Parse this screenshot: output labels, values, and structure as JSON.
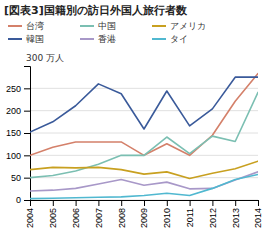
{
  "chart_data": {
    "type": "line",
    "title": "[図表3]国籍別の訪日外国人旅行者数",
    "ylabel": "300 万人",
    "x": [
      2004,
      2005,
      2006,
      2007,
      2008,
      2009,
      2010,
      2011,
      2012,
      2013,
      2014
    ],
    "series": [
      {
        "name": "台湾",
        "color": "#D4806A",
        "values": [
          100,
          118,
          130,
          130,
          130,
          100,
          126,
          100,
          145,
          221,
          283
        ]
      },
      {
        "name": "中国",
        "color": "#7BBFB2",
        "values": [
          50,
          55,
          65,
          80,
          100,
          100,
          141,
          104,
          143,
          131,
          241
        ]
      },
      {
        "name": "アメリカ",
        "color": "#C8A020",
        "values": [
          68,
          73,
          72,
          73,
          68,
          58,
          63,
          48,
          60,
          70,
          87
        ]
      },
      {
        "name": "韓国",
        "color": "#3A5A9A",
        "values": [
          152,
          175,
          211,
          260,
          238,
          159,
          244,
          166,
          204,
          275,
          275
        ]
      },
      {
        "name": "香港",
        "color": "#A898C8",
        "values": [
          20,
          22,
          26,
          36,
          46,
          33,
          40,
          25,
          26,
          45,
          63
        ]
      },
      {
        "name": "タイ",
        "color": "#50B8D0",
        "values": [
          3,
          4,
          5,
          6,
          7,
          10,
          15,
          10,
          26,
          46,
          57
        ]
      }
    ],
    "xlim": [
      2004,
      2014
    ],
    "xticks": [
      2004,
      2005,
      2006,
      2007,
      2008,
      2009,
      2010,
      2011,
      2012,
      2013,
      2014
    ],
    "ylim": [
      0,
      300
    ],
    "yticks": [
      0,
      50,
      100,
      150,
      200,
      250
    ],
    "grid": true,
    "legend": "top-left"
  }
}
